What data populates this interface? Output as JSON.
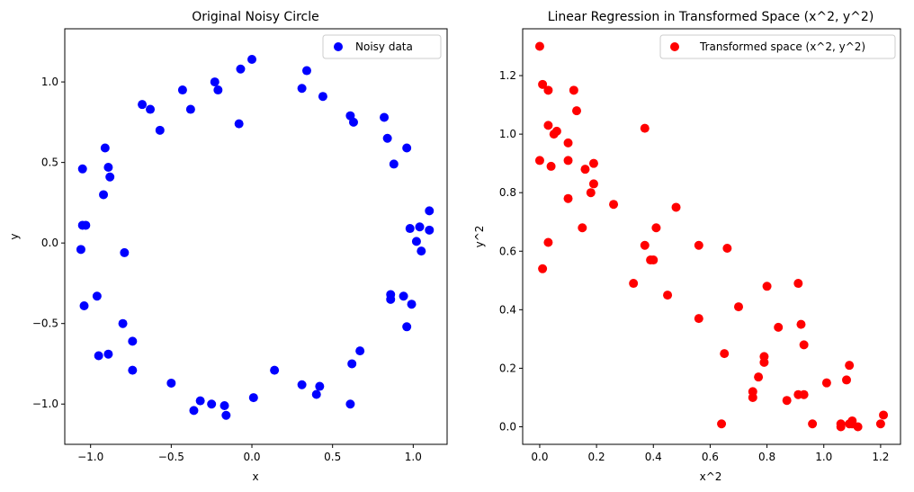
{
  "chart_data": [
    {
      "type": "scatter",
      "title": "Original Noisy Circle",
      "xlabel": "x",
      "ylabel": "y",
      "xlim": [
        -1.16,
        1.21
      ],
      "ylim": [
        -1.25,
        1.33
      ],
      "xticks": [
        -1.0,
        -0.5,
        0.0,
        0.5,
        1.0
      ],
      "yticks": [
        -1.0,
        -0.5,
        0.0,
        0.5,
        1.0
      ],
      "xtick_labels": [
        "−1.0",
        "−0.5",
        "0.0",
        "0.5",
        "1.0"
      ],
      "ytick_labels": [
        "−1.0",
        "−0.5",
        "0.0",
        "0.5",
        "1.0"
      ],
      "legend_position": "top-right",
      "grid": false,
      "series": [
        {
          "name": "Noisy data",
          "color": "#0000ff",
          "points": [
            [
              0.0,
              1.14
            ],
            [
              -0.07,
              1.08
            ],
            [
              0.34,
              1.07
            ],
            [
              -0.23,
              1.0
            ],
            [
              -0.21,
              0.95
            ],
            [
              -0.43,
              0.95
            ],
            [
              0.31,
              0.96
            ],
            [
              0.44,
              0.91
            ],
            [
              -0.68,
              0.86
            ],
            [
              -0.63,
              0.83
            ],
            [
              -0.38,
              0.83
            ],
            [
              0.61,
              0.79
            ],
            [
              0.63,
              0.75
            ],
            [
              0.82,
              0.78
            ],
            [
              -0.08,
              0.74
            ],
            [
              -0.57,
              0.7
            ],
            [
              0.84,
              0.65
            ],
            [
              -0.91,
              0.59
            ],
            [
              0.96,
              0.59
            ],
            [
              0.88,
              0.49
            ],
            [
              -0.89,
              0.47
            ],
            [
              -1.05,
              0.46
            ],
            [
              -0.88,
              0.41
            ],
            [
              -0.92,
              0.3
            ],
            [
              1.1,
              0.2
            ],
            [
              -1.05,
              0.11
            ],
            [
              -1.03,
              0.11
            ],
            [
              1.04,
              0.1
            ],
            [
              0.98,
              0.09
            ],
            [
              1.1,
              0.08
            ],
            [
              1.02,
              0.01
            ],
            [
              -1.06,
              -0.04
            ],
            [
              1.05,
              -0.05
            ],
            [
              -0.79,
              -0.06
            ],
            [
              0.86,
              -0.32
            ],
            [
              0.94,
              -0.33
            ],
            [
              -0.96,
              -0.33
            ],
            [
              0.86,
              -0.35
            ],
            [
              0.99,
              -0.38
            ],
            [
              -1.04,
              -0.39
            ],
            [
              -0.8,
              -0.5
            ],
            [
              0.96,
              -0.52
            ],
            [
              -0.74,
              -0.61
            ],
            [
              0.67,
              -0.67
            ],
            [
              -0.95,
              -0.7
            ],
            [
              -0.89,
              -0.69
            ],
            [
              0.62,
              -0.75
            ],
            [
              -0.74,
              -0.79
            ],
            [
              0.14,
              -0.79
            ],
            [
              -0.5,
              -0.87
            ],
            [
              0.31,
              -0.88
            ],
            [
              0.42,
              -0.89
            ],
            [
              0.4,
              -0.94
            ],
            [
              0.01,
              -0.96
            ],
            [
              -0.32,
              -0.98
            ],
            [
              -0.25,
              -1.0
            ],
            [
              -0.17,
              -1.01
            ],
            [
              0.61,
              -1.0
            ],
            [
              -0.36,
              -1.04
            ],
            [
              -0.16,
              -1.07
            ]
          ]
        }
      ]
    },
    {
      "type": "scatter",
      "title": "Linear Regression in Transformed Space (x^2, y^2)",
      "xlabel": "x^2",
      "ylabel": "y^2",
      "xlim": [
        -0.06,
        1.27
      ],
      "ylim": [
        -0.06,
        1.36
      ],
      "xticks": [
        0.0,
        0.2,
        0.4,
        0.6,
        0.8,
        1.0,
        1.2
      ],
      "yticks": [
        0.0,
        0.2,
        0.4,
        0.6,
        0.8,
        1.0,
        1.2
      ],
      "xtick_labels": [
        "0.0",
        "0.2",
        "0.4",
        "0.6",
        "0.8",
        "1.0",
        "1.2"
      ],
      "ytick_labels": [
        "0.0",
        "0.2",
        "0.4",
        "0.6",
        "0.8",
        "1.0",
        "1.2"
      ],
      "legend_position": "top-right",
      "grid": false,
      "series": [
        {
          "name": "Transformed space (x^2, y^2)",
          "color": "#ff0000",
          "points": [
            [
              0.0,
              1.3
            ],
            [
              0.01,
              1.17
            ],
            [
              0.03,
              1.15
            ],
            [
              0.12,
              1.15
            ],
            [
              0.13,
              1.08
            ],
            [
              0.03,
              1.03
            ],
            [
              0.37,
              1.02
            ],
            [
              0.06,
              1.01
            ],
            [
              0.05,
              1.0
            ],
            [
              0.1,
              0.97
            ],
            [
              0.0,
              0.91
            ],
            [
              0.1,
              0.91
            ],
            [
              0.19,
              0.9
            ],
            [
              0.04,
              0.89
            ],
            [
              0.16,
              0.88
            ],
            [
              0.19,
              0.83
            ],
            [
              0.18,
              0.8
            ],
            [
              0.1,
              0.78
            ],
            [
              0.26,
              0.76
            ],
            [
              0.48,
              0.75
            ],
            [
              0.15,
              0.68
            ],
            [
              0.41,
              0.68
            ],
            [
              0.03,
              0.63
            ],
            [
              0.37,
              0.62
            ],
            [
              0.56,
              0.62
            ],
            [
              0.66,
              0.61
            ],
            [
              0.39,
              0.57
            ],
            [
              0.4,
              0.57
            ],
            [
              0.01,
              0.54
            ],
            [
              0.33,
              0.49
            ],
            [
              0.91,
              0.49
            ],
            [
              0.8,
              0.48
            ],
            [
              0.45,
              0.45
            ],
            [
              0.7,
              0.41
            ],
            [
              0.56,
              0.37
            ],
            [
              0.84,
              0.34
            ],
            [
              0.92,
              0.35
            ],
            [
              0.93,
              0.28
            ],
            [
              0.65,
              0.25
            ],
            [
              0.79,
              0.24
            ],
            [
              0.79,
              0.22
            ],
            [
              1.09,
              0.21
            ],
            [
              0.77,
              0.17
            ],
            [
              1.08,
              0.16
            ],
            [
              1.01,
              0.15
            ],
            [
              0.75,
              0.12
            ],
            [
              0.91,
              0.11
            ],
            [
              0.93,
              0.11
            ],
            [
              0.75,
              0.1
            ],
            [
              0.87,
              0.09
            ],
            [
              0.64,
              0.01
            ],
            [
              0.96,
              0.01
            ],
            [
              1.06,
              0.01
            ],
            [
              1.06,
              0.0
            ],
            [
              1.09,
              0.01
            ],
            [
              1.1,
              0.01
            ],
            [
              1.12,
              0.0
            ],
            [
              1.2,
              0.01
            ],
            [
              1.21,
              0.04
            ],
            [
              1.1,
              0.02
            ]
          ]
        }
      ]
    }
  ]
}
